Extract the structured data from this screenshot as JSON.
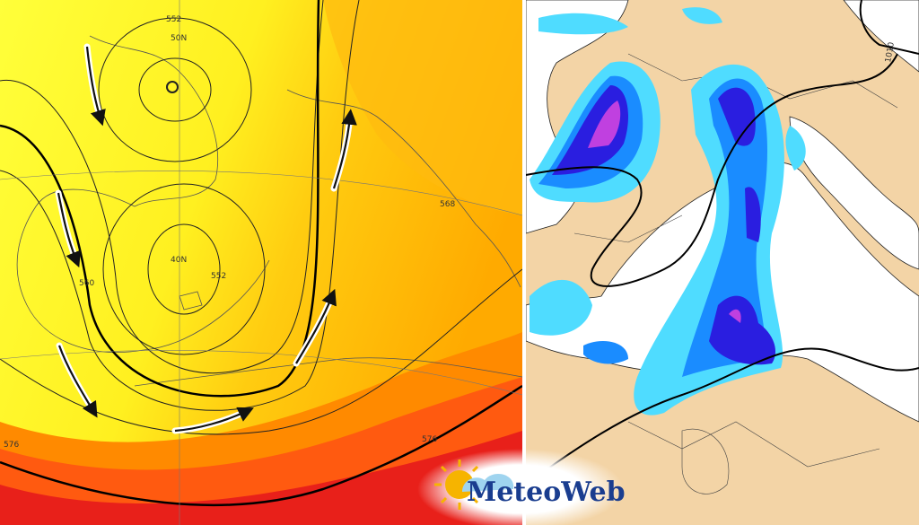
{
  "left_map": {
    "grid_labels": [
      "50N",
      "40N"
    ],
    "contour_labels": [
      "552",
      "552",
      "560",
      "568",
      "576",
      "576"
    ]
  },
  "right_map": {
    "contour_labels": [
      "1010"
    ]
  },
  "logo": {
    "text": "MeteoWeb"
  }
}
